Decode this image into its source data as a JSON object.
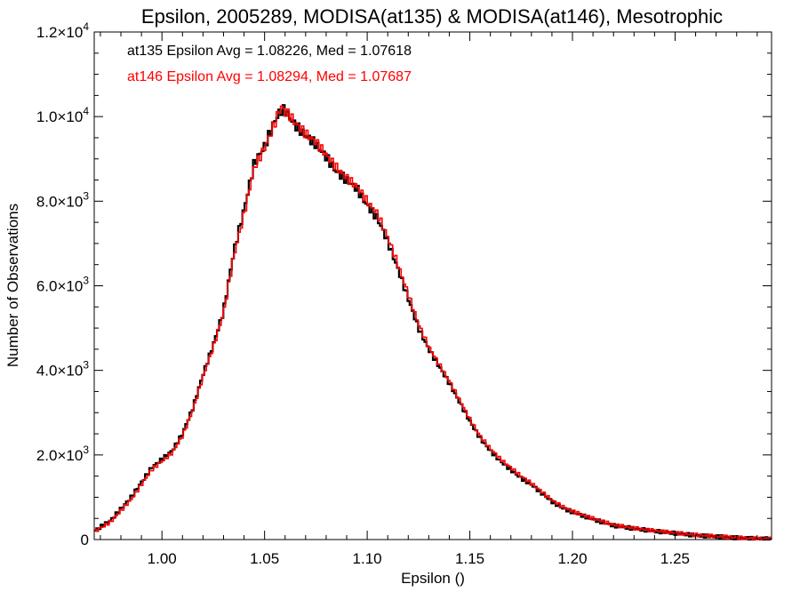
{
  "chart_data": {
    "type": "line",
    "title": "Epsilon, 2005289, MODISA(at135) & MODISA(at146), Mesotrophic",
    "xlabel": "Epsilon ()",
    "ylabel": "Number of Observations",
    "xlim": [
      0.967,
      1.297
    ],
    "ylim": [
      0,
      12000
    ],
    "x_ticks": [
      1.0,
      1.05,
      1.1,
      1.15,
      1.2,
      1.25
    ],
    "x_tick_labels": [
      "1.00",
      "1.05",
      "1.10",
      "1.15",
      "1.20",
      "1.25"
    ],
    "y_ticks": [
      0,
      2000,
      4000,
      6000,
      8000,
      10000,
      12000
    ],
    "y_tick_labels": [
      {
        "mant": "0",
        "exp": ""
      },
      {
        "mant": "2.0×10",
        "exp": "3"
      },
      {
        "mant": "4.0×10",
        "exp": "3"
      },
      {
        "mant": "6.0×10",
        "exp": "3"
      },
      {
        "mant": "8.0×10",
        "exp": "3"
      },
      {
        "mant": "1.0×10",
        "exp": "4"
      },
      {
        "mant": "1.2×10",
        "exp": "4"
      }
    ],
    "grid": false,
    "annotations": [
      {
        "text": "at135 Epsilon Avg = 1.08226, Med = 1.07618",
        "color": "#000000"
      },
      {
        "text": "at146 Epsilon Avg = 1.08294, Med = 1.07687",
        "color": "#ff0000"
      }
    ],
    "series": [
      {
        "color": "#000000",
        "x": [
          0.967,
          0.975,
          0.985,
          0.995,
          1.0,
          1.005,
          1.01,
          1.015,
          1.02,
          1.025,
          1.03,
          1.035,
          1.04,
          1.045,
          1.05,
          1.055,
          1.058,
          1.06,
          1.062,
          1.065,
          1.07,
          1.075,
          1.08,
          1.085,
          1.09,
          1.095,
          1.1,
          1.105,
          1.11,
          1.115,
          1.12,
          1.125,
          1.13,
          1.135,
          1.14,
          1.145,
          1.15,
          1.155,
          1.16,
          1.165,
          1.17,
          1.175,
          1.18,
          1.185,
          1.19,
          1.195,
          1.2,
          1.21,
          1.22,
          1.23,
          1.24,
          1.25,
          1.26,
          1.27,
          1.28,
          1.29,
          1.297
        ],
        "y": [
          200,
          450,
          1000,
          1700,
          1900,
          2100,
          2500,
          3100,
          3900,
          4600,
          5400,
          6800,
          7800,
          8900,
          9300,
          9900,
          10150,
          10150,
          10000,
          9800,
          9550,
          9350,
          9050,
          8700,
          8500,
          8300,
          7900,
          7600,
          7050,
          6400,
          5700,
          5000,
          4500,
          4100,
          3700,
          3250,
          2800,
          2400,
          2100,
          1850,
          1650,
          1450,
          1300,
          1100,
          900,
          750,
          650,
          480,
          330,
          260,
          200,
          150,
          100,
          70,
          40,
          20,
          15
        ]
      },
      {
        "color": "#ff0000",
        "x": [
          0.967,
          0.975,
          0.985,
          0.995,
          1.0,
          1.005,
          1.01,
          1.015,
          1.02,
          1.025,
          1.03,
          1.035,
          1.04,
          1.045,
          1.05,
          1.055,
          1.058,
          1.06,
          1.062,
          1.065,
          1.07,
          1.075,
          1.08,
          1.085,
          1.09,
          1.095,
          1.1,
          1.105,
          1.11,
          1.115,
          1.12,
          1.125,
          1.13,
          1.135,
          1.14,
          1.145,
          1.15,
          1.155,
          1.16,
          1.165,
          1.17,
          1.175,
          1.18,
          1.185,
          1.19,
          1.195,
          1.2,
          1.21,
          1.22,
          1.23,
          1.24,
          1.25,
          1.26,
          1.27,
          1.28,
          1.29,
          1.297
        ],
        "y": [
          180,
          420,
          950,
          1650,
          1850,
          2050,
          2450,
          3050,
          3850,
          4550,
          5350,
          6700,
          7700,
          8800,
          9250,
          9850,
          10250,
          10100,
          10050,
          9850,
          9600,
          9400,
          9100,
          8800,
          8550,
          8350,
          8000,
          7700,
          7150,
          6500,
          5800,
          5100,
          4550,
          4150,
          3750,
          3300,
          2850,
          2450,
          2150,
          1900,
          1700,
          1500,
          1330,
          1130,
          930,
          780,
          670,
          500,
          350,
          270,
          210,
          160,
          110,
          75,
          45,
          22,
          15
        ]
      }
    ]
  }
}
